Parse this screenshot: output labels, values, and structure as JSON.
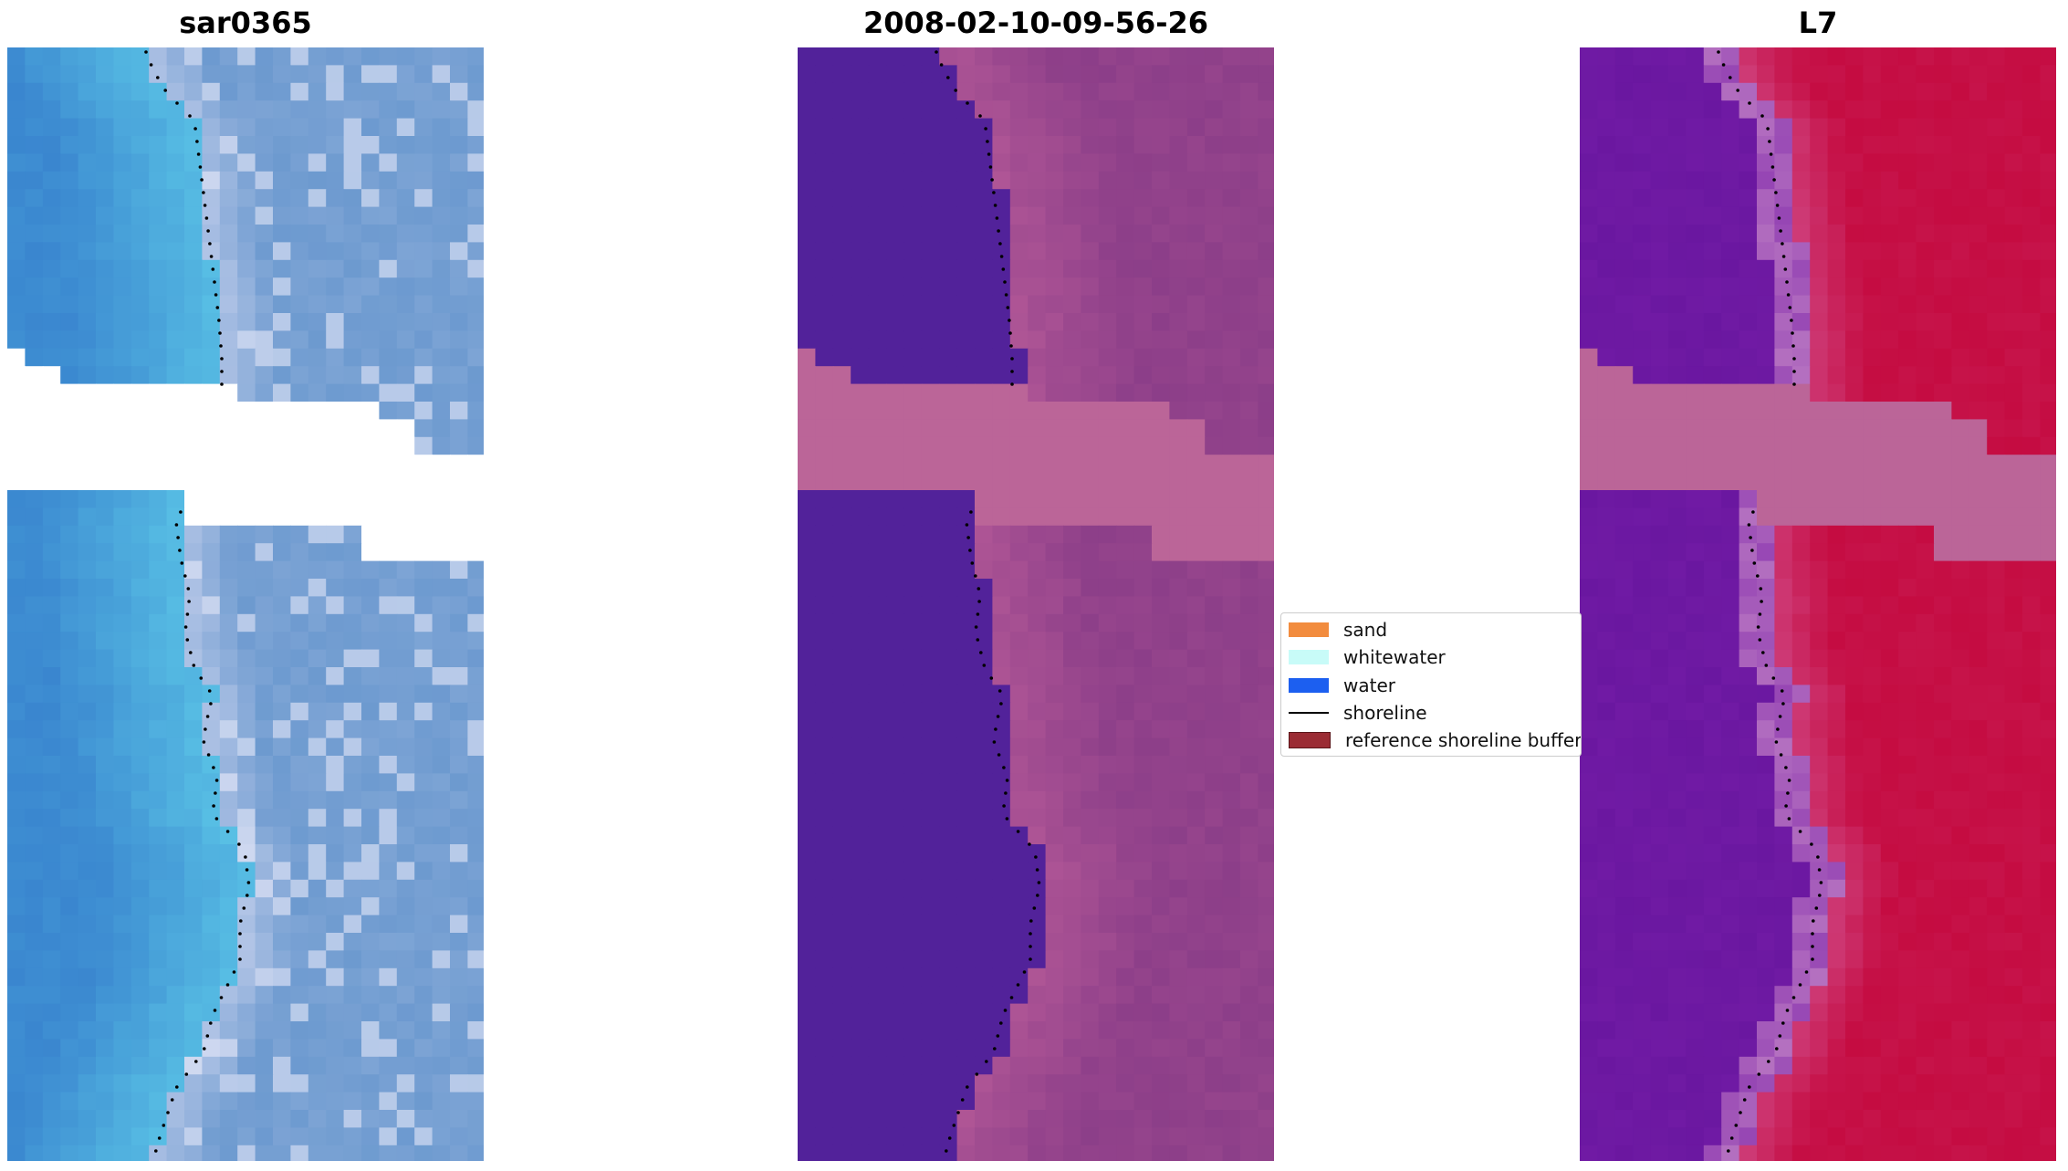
{
  "panels": [
    {
      "title": "sar0365",
      "kind": "rgb"
    },
    {
      "title": "2008-02-10-09-56-26",
      "kind": "classified"
    },
    {
      "title": "L7",
      "kind": "index"
    }
  ],
  "legend": {
    "items": [
      {
        "label": "sand",
        "color": "#f28c3e",
        "type": "patch"
      },
      {
        "label": "whitewater",
        "color": "#c8fbf8",
        "type": "patch"
      },
      {
        "label": "water",
        "color": "#1c5ff0",
        "type": "patch"
      },
      {
        "label": "shoreline",
        "color": "#000000",
        "type": "line"
      },
      {
        "label": "reference shoreline buffer",
        "color": "#9b2c34",
        "type": "patch"
      }
    ]
  },
  "colors": {
    "rgb_water": "#3a86cf",
    "rgb_shallow": "#5ac3e6",
    "rgb_land": "#b8c8e8",
    "class_water": "#52229a",
    "class_land": "#8a3d88",
    "buffer_band": "#bb6598",
    "index_water": "#6a17a0",
    "index_land": "#c4093e",
    "nodata": "#ffffff",
    "shoreline": "#000000"
  }
}
